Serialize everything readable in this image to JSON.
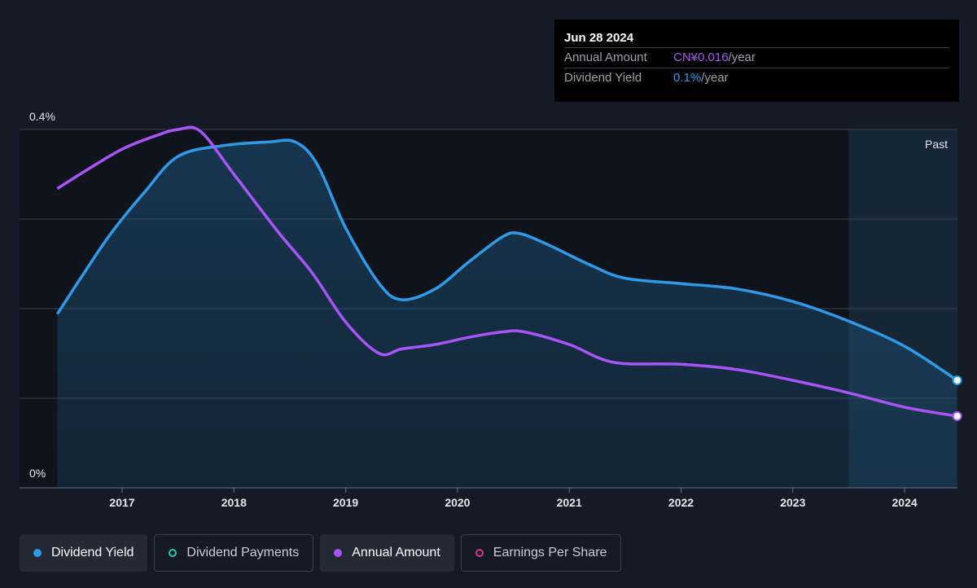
{
  "chart_data": {
    "type": "line",
    "x_unit": "year",
    "x_ticks": [
      2017,
      2018,
      2019,
      2020,
      2021,
      2022,
      2023,
      2024
    ],
    "x_tick_labels": [
      "2017",
      "2018",
      "2019",
      "2020",
      "2021",
      "2022",
      "2023",
      "2024"
    ],
    "xlim": [
      2016.4,
      2024.5
    ],
    "ylim": [
      0,
      0.4
    ],
    "y_tick_labels": {
      "top": "0.4%",
      "bottom": "0%"
    },
    "y_gridlines": [
      0.1,
      0.2,
      0.3,
      0.4
    ],
    "past_region_start": 2023.5,
    "past_label": "Past",
    "series": [
      {
        "name": "Dividend Yield",
        "color": "#2f9ae8",
        "area_fill": true,
        "points": [
          [
            2016.42,
            0.194
          ],
          [
            2016.65,
            0.238
          ],
          [
            2016.9,
            0.284
          ],
          [
            2017.2,
            0.33
          ],
          [
            2017.5,
            0.37
          ],
          [
            2017.9,
            0.382
          ],
          [
            2018.3,
            0.386
          ],
          [
            2018.55,
            0.386
          ],
          [
            2018.75,
            0.36
          ],
          [
            2019.0,
            0.29
          ],
          [
            2019.3,
            0.228
          ],
          [
            2019.5,
            0.21
          ],
          [
            2019.8,
            0.222
          ],
          [
            2020.1,
            0.252
          ],
          [
            2020.4,
            0.28
          ],
          [
            2020.55,
            0.284
          ],
          [
            2020.8,
            0.272
          ],
          [
            2021.2,
            0.248
          ],
          [
            2021.5,
            0.234
          ],
          [
            2022.0,
            0.228
          ],
          [
            2022.5,
            0.222
          ],
          [
            2023.0,
            0.208
          ],
          [
            2023.5,
            0.186
          ],
          [
            2024.0,
            0.158
          ],
          [
            2024.47,
            0.12
          ]
        ]
      },
      {
        "name": "Annual Amount",
        "color": "#a855f7",
        "area_fill": false,
        "points": [
          [
            2016.42,
            0.334
          ],
          [
            2016.7,
            0.356
          ],
          [
            2017.0,
            0.378
          ],
          [
            2017.3,
            0.393
          ],
          [
            2017.5,
            0.4
          ],
          [
            2017.7,
            0.398
          ],
          [
            2018.0,
            0.35
          ],
          [
            2018.4,
            0.285
          ],
          [
            2018.7,
            0.24
          ],
          [
            2019.0,
            0.185
          ],
          [
            2019.3,
            0.15
          ],
          [
            2019.5,
            0.155
          ],
          [
            2019.8,
            0.16
          ],
          [
            2020.1,
            0.168
          ],
          [
            2020.4,
            0.174
          ],
          [
            2020.6,
            0.174
          ],
          [
            2021.0,
            0.16
          ],
          [
            2021.4,
            0.14
          ],
          [
            2022.0,
            0.138
          ],
          [
            2022.5,
            0.132
          ],
          [
            2023.0,
            0.12
          ],
          [
            2023.5,
            0.106
          ],
          [
            2024.0,
            0.09
          ],
          [
            2024.47,
            0.08
          ]
        ]
      }
    ]
  },
  "tooltip": {
    "date": "Jun 28 2024",
    "rows": [
      {
        "label": "Annual Amount",
        "value": "CN¥0.016",
        "unit": "/year"
      },
      {
        "label": "Dividend Yield",
        "value": "0.1%",
        "unit": "/year"
      }
    ]
  },
  "legend": [
    {
      "label": "Dividend Yield",
      "color": "#2f9ae8",
      "style": "filled"
    },
    {
      "label": "Dividend Payments",
      "color": "#2ec4b6",
      "style": "outlined"
    },
    {
      "label": "Annual Amount",
      "color": "#a855f7",
      "style": "filled"
    },
    {
      "label": "Earnings Per Share",
      "color": "#d6388a",
      "style": "outlined"
    }
  ]
}
